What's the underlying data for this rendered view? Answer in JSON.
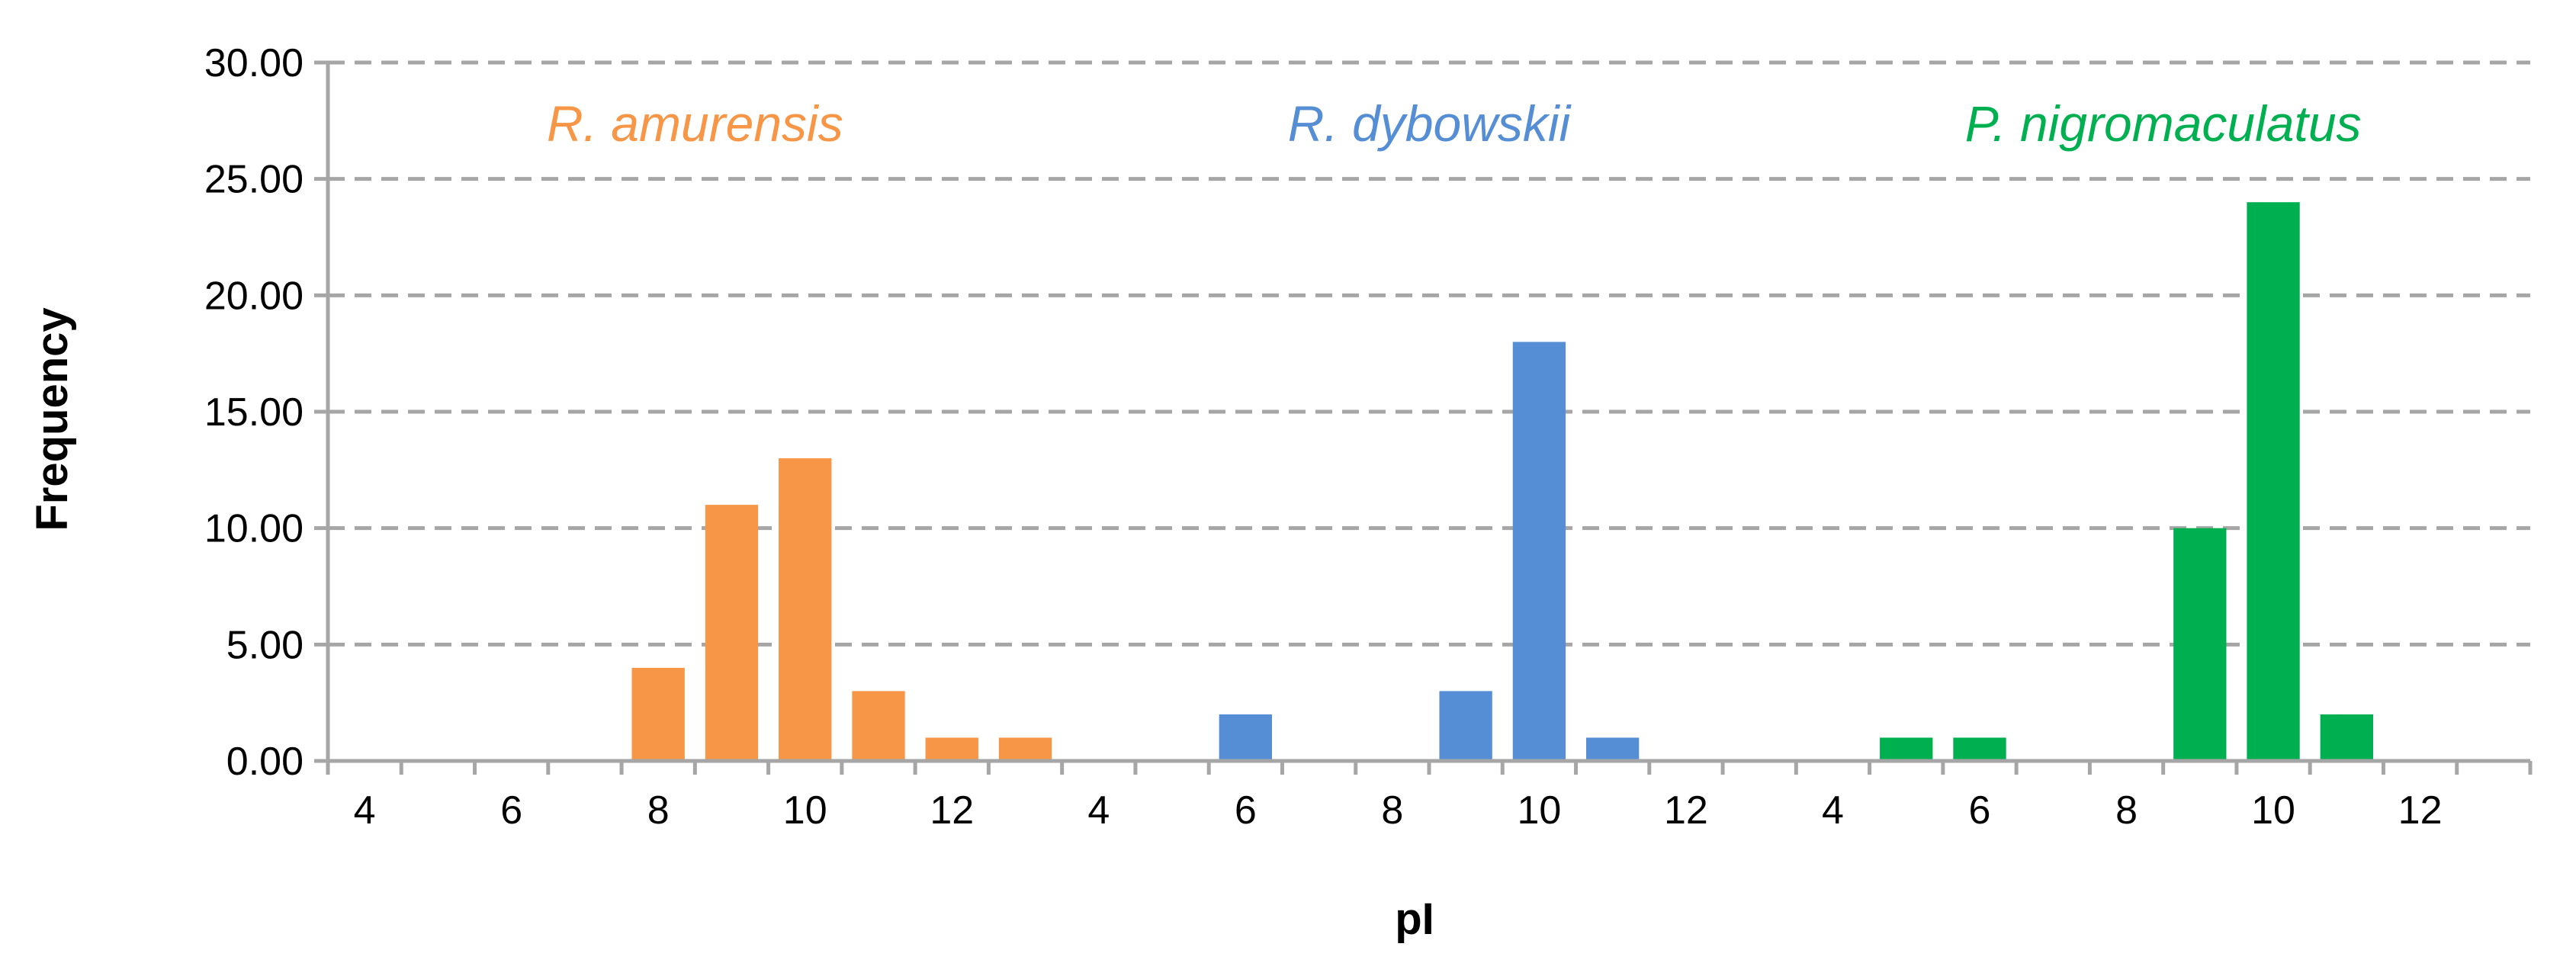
{
  "chart_data": {
    "type": "bar",
    "xlabel": "pI",
    "ylabel": "Frequency",
    "ylim": [
      0,
      30
    ],
    "yticks": [
      "0.00",
      "5.00",
      "10.00",
      "15.00",
      "20.00",
      "25.00",
      "30.00"
    ],
    "grid": "horizontal dashed",
    "categories": [
      4,
      5,
      6,
      7,
      8,
      9,
      10,
      11,
      12,
      13
    ],
    "x_tick_labels": [
      "4",
      "6",
      "8",
      "10",
      "12"
    ],
    "series": [
      {
        "name": "R. amurensis",
        "color": "#F79646",
        "values": [
          0,
          0,
          0,
          0,
          4,
          11,
          13,
          3,
          1,
          1
        ]
      },
      {
        "name": "R. dybowskii",
        "color": "#558ED5",
        "values": [
          0,
          0,
          2,
          0,
          0,
          3,
          18,
          1,
          0,
          0
        ]
      },
      {
        "name": "P. nigromaculatus",
        "color": "#00B050",
        "values": [
          0,
          1,
          1,
          0,
          0,
          10,
          24,
          2,
          0,
          0
        ]
      }
    ]
  }
}
